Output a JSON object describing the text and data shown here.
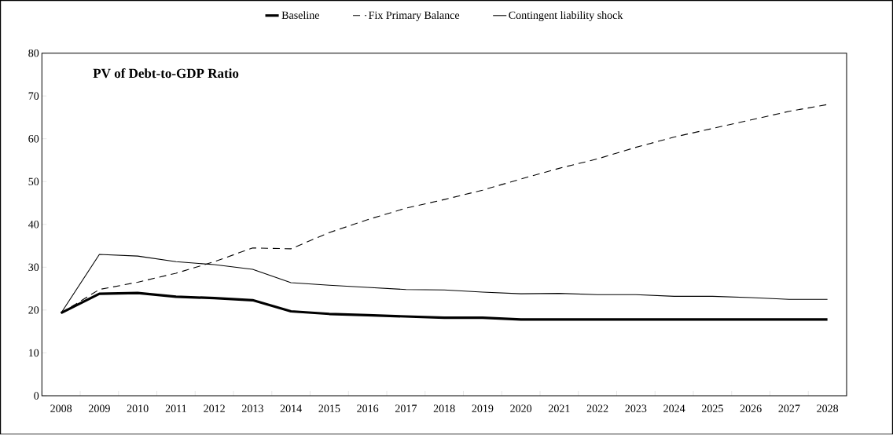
{
  "chart_data": {
    "type": "line",
    "title": "PV of Debt-to-GDP Ratio",
    "categories": [
      "2008",
      "2009",
      "2010",
      "2011",
      "2012",
      "2013",
      "2014",
      "2015",
      "2016",
      "2017",
      "2018",
      "2019",
      "2020",
      "2021",
      "2022",
      "2023",
      "2024",
      "2025",
      "2026",
      "2027",
      "2028"
    ],
    "series": [
      {
        "name": "Baseline",
        "color": "#000000",
        "line_style": "solid",
        "values": [
          19.3,
          23.8,
          24,
          23.1,
          22.8,
          22.3,
          19.7,
          19.1,
          18.8,
          18.5,
          18.2,
          18.2,
          17.8,
          17.8,
          17.8,
          17.8,
          17.8,
          17.8,
          17.8,
          17.8,
          17.8
        ]
      },
      {
        "name": "Fix Primary Balance",
        "color": "#000000",
        "line_style": "dashed",
        "values": [
          19.3,
          24.8,
          26.5,
          28.6,
          31.3,
          34.5,
          34.3,
          38.1,
          41.1,
          43.8,
          45.8,
          48,
          50.6,
          53.1,
          55.3,
          58,
          60.4,
          62.4,
          64.4,
          66.4,
          68
        ]
      },
      {
        "name": "Contingent liability shock",
        "color": "#000000",
        "line_style": "solid",
        "values": [
          19.3,
          33,
          32.6,
          31.3,
          30.6,
          29.5,
          26.4,
          25.8,
          25.3,
          24.8,
          24.7,
          24.2,
          23.8,
          23.9,
          23.6,
          23.6,
          23.2,
          23.2,
          22.9,
          22.5,
          22.5
        ]
      }
    ],
    "ylim": [
      0,
      80
    ],
    "yticks": [
      0,
      10,
      20,
      30,
      40,
      50,
      60,
      70,
      80
    ],
    "legend": "top",
    "grid": false,
    "marker": "none"
  }
}
